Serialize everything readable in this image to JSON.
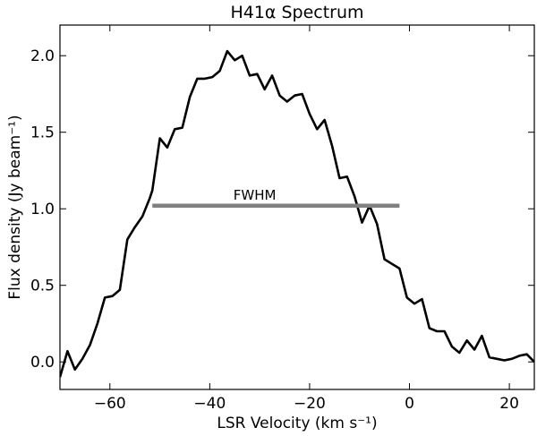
{
  "chart_data": {
    "type": "line",
    "title": "H41α Spectrum",
    "xlabel": "LSR Velocity (km s⁻¹)",
    "ylabel": "Flux density (Jy beam⁻¹)",
    "xlim": [
      -70,
      25
    ],
    "ylim": [
      -0.18,
      2.2
    ],
    "xticks": [
      -60,
      -40,
      -20,
      0,
      20
    ],
    "xtick_labels": [
      "−60",
      "−40",
      "−20",
      "0",
      "20"
    ],
    "yticks": [
      0.0,
      0.5,
      1.0,
      1.5,
      2.0
    ],
    "ytick_labels": [
      "0.0",
      "0.5",
      "1.0",
      "1.5",
      "2.0"
    ],
    "grid": false,
    "series": [
      {
        "color": "#000000",
        "x": [
          -70,
          -68.5,
          -67,
          -65.5,
          -64,
          -62.5,
          -61,
          -59.5,
          -58,
          -56.5,
          -55,
          -53.5,
          -52,
          -51.5,
          -50,
          -48.5,
          -47,
          -45.5,
          -44,
          -42.5,
          -41,
          -39.5,
          -38,
          -36.5,
          -35,
          -33.5,
          -32,
          -30.5,
          -29,
          -27.5,
          -26,
          -24.5,
          -23,
          -21.5,
          -20,
          -18.5,
          -17,
          -15.5,
          -14,
          -12.5,
          -11,
          -9.5,
          -8,
          -6.5,
          -5,
          -3.5,
          -2,
          -0.5,
          1,
          2.5,
          4,
          5.5,
          7,
          8.5,
          10,
          11.5,
          13,
          14.5,
          16,
          17.5,
          19,
          20.5,
          22,
          23.5,
          25
        ],
        "y": [
          -0.1,
          0.07,
          -0.05,
          0.02,
          0.11,
          0.25,
          0.42,
          0.43,
          0.47,
          0.8,
          0.88,
          0.95,
          1.07,
          1.12,
          1.46,
          1.4,
          1.52,
          1.53,
          1.73,
          1.85,
          1.85,
          1.86,
          1.9,
          2.03,
          1.97,
          2.0,
          1.87,
          1.88,
          1.78,
          1.87,
          1.74,
          1.7,
          1.74,
          1.75,
          1.62,
          1.52,
          1.58,
          1.41,
          1.2,
          1.21,
          1.08,
          0.91,
          1.02,
          0.9,
          0.67,
          0.64,
          0.61,
          0.42,
          0.38,
          0.41,
          0.22,
          0.2,
          0.2,
          0.1,
          0.06,
          0.14,
          0.08,
          0.17,
          0.03,
          0.02,
          0.01,
          0.02,
          0.04,
          0.05,
          0.0
        ]
      }
    ],
    "annotations": [
      {
        "text": "FWHM",
        "x": -31,
        "y": 1.06
      }
    ],
    "fwhm_line": {
      "x_start": -51.5,
      "x_end": -2,
      "y": 1.02,
      "color": "#808080"
    }
  }
}
